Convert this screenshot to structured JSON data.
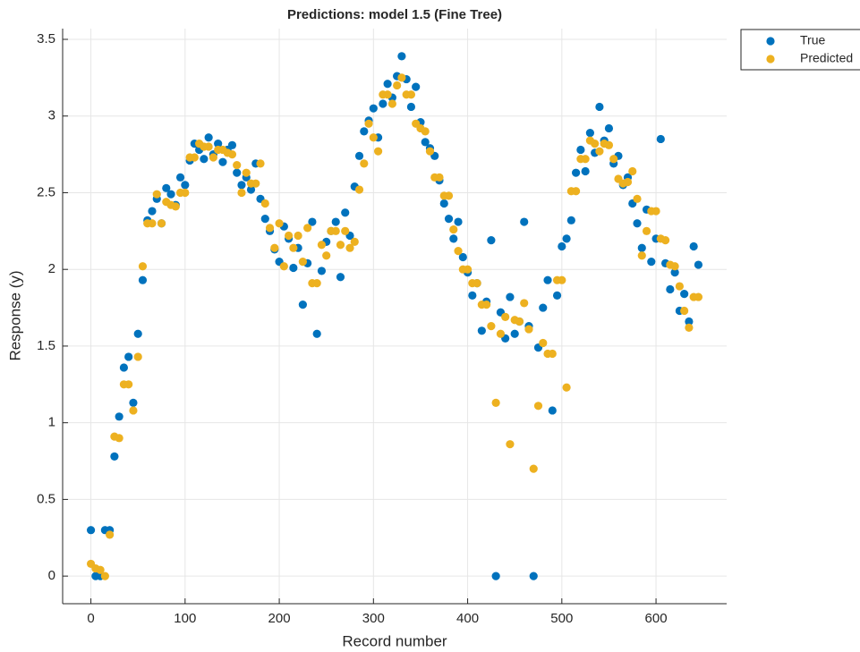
{
  "chart_data": {
    "type": "scatter",
    "title": "Predictions: model 1.5 (Fine Tree)",
    "x_label": "Record number",
    "y_label": "Response (y)",
    "xlim": [
      -30,
      675
    ],
    "xticks": [
      0,
      100,
      200,
      300,
      400,
      500,
      600
    ],
    "ylim": [
      -0.18,
      3.57
    ],
    "yticks": [
      0,
      0.5,
      1,
      1.5,
      2,
      2.5,
      3,
      3.5
    ],
    "grid": true,
    "legend": "outside-top-right",
    "x": [
      0,
      5,
      10,
      15,
      20,
      25,
      30,
      35,
      40,
      45,
      50,
      55,
      60,
      65,
      70,
      75,
      80,
      85,
      90,
      95,
      100,
      105,
      110,
      115,
      120,
      125,
      130,
      135,
      140,
      145,
      150,
      155,
      160,
      165,
      170,
      175,
      180,
      185,
      190,
      195,
      200,
      205,
      210,
      215,
      220,
      225,
      230,
      235,
      240,
      245,
      250,
      255,
      260,
      265,
      270,
      275,
      280,
      285,
      290,
      295,
      300,
      305,
      310,
      315,
      320,
      325,
      330,
      335,
      340,
      345,
      350,
      355,
      360,
      365,
      370,
      375,
      380,
      385,
      390,
      395,
      400,
      405,
      410,
      415,
      420,
      425,
      430,
      435,
      440,
      445,
      450,
      455,
      460,
      465,
      470,
      475,
      480,
      485,
      490,
      495,
      500,
      505,
      510,
      515,
      520,
      525,
      530,
      535,
      540,
      545,
      550,
      555,
      560,
      565,
      570,
      575,
      580,
      585,
      590,
      595,
      600,
      605,
      610,
      615,
      620,
      625,
      630,
      635,
      640,
      645
    ],
    "series": [
      {
        "name": "True",
        "color": "#0072bd",
        "values": [
          0.3,
          0,
          0,
          0.3,
          0.3,
          0.78,
          1.04,
          1.36,
          1.43,
          1.13,
          1.58,
          1.93,
          2.32,
          2.38,
          2.46,
          2.3,
          2.53,
          2.49,
          2.42,
          2.6,
          2.55,
          2.71,
          2.82,
          2.78,
          2.72,
          2.86,
          2.75,
          2.82,
          2.7,
          2.78,
          2.81,
          2.63,
          2.55,
          2.6,
          2.52,
          2.69,
          2.46,
          2.33,
          2.25,
          2.13,
          2.05,
          2.28,
          2.2,
          2.01,
          2.14,
          1.77,
          2.04,
          2.31,
          1.58,
          1.99,
          2.18,
          2.25,
          2.31,
          1.95,
          2.37,
          2.22,
          2.54,
          2.74,
          2.9,
          2.97,
          3.05,
          2.86,
          3.08,
          3.21,
          3.12,
          3.26,
          3.39,
          3.24,
          3.06,
          3.19,
          2.96,
          2.83,
          2.79,
          2.74,
          2.58,
          2.43,
          2.33,
          2.2,
          2.31,
          2.08,
          1.98,
          1.83,
          1.91,
          1.6,
          1.79,
          2.19,
          0,
          1.72,
          1.55,
          1.82,
          1.58,
          1.66,
          2.31,
          1.63,
          0,
          1.49,
          1.75,
          1.93,
          1.08,
          1.83,
          2.15,
          2.2,
          2.32,
          2.63,
          2.78,
          2.64,
          2.89,
          2.76,
          3.06,
          2.84,
          2.92,
          2.69,
          2.74,
          2.55,
          2.6,
          2.43,
          2.3,
          2.14,
          2.39,
          2.05,
          2.2,
          2.85,
          2.04,
          1.87,
          1.98,
          1.73,
          1.84,
          1.66,
          2.15,
          2.03
        ]
      },
      {
        "name": "Predicted",
        "color": "#edb120",
        "values": [
          0.08,
          0.05,
          0.04,
          0,
          0.27,
          0.91,
          0.9,
          1.25,
          1.25,
          1.08,
          1.43,
          2.02,
          2.3,
          2.3,
          2.49,
          2.3,
          2.44,
          2.42,
          2.41,
          2.5,
          2.5,
          2.73,
          2.73,
          2.82,
          2.8,
          2.8,
          2.73,
          2.78,
          2.78,
          2.76,
          2.75,
          2.68,
          2.5,
          2.63,
          2.56,
          2.56,
          2.69,
          2.43,
          2.27,
          2.14,
          2.3,
          2.02,
          2.22,
          2.14,
          2.22,
          2.05,
          2.27,
          1.91,
          1.91,
          2.16,
          2.09,
          2.25,
          2.25,
          2.16,
          2.25,
          2.14,
          2.18,
          2.52,
          2.69,
          2.95,
          2.86,
          2.77,
          3.14,
          3.14,
          3.08,
          3.2,
          3.25,
          3.14,
          3.14,
          2.95,
          2.92,
          2.9,
          2.77,
          2.6,
          2.6,
          2.48,
          2.48,
          2.26,
          2.12,
          2,
          2,
          1.91,
          1.91,
          1.77,
          1.77,
          1.63,
          1.13,
          1.58,
          1.69,
          0.86,
          1.67,
          1.66,
          1.78,
          1.61,
          0.7,
          1.11,
          1.52,
          1.45,
          1.45,
          1.93,
          1.93,
          1.23,
          2.51,
          2.51,
          2.72,
          2.72,
          2.84,
          2.82,
          2.77,
          2.82,
          2.81,
          2.72,
          2.59,
          2.56,
          2.57,
          2.64,
          2.46,
          2.09,
          2.25,
          2.38,
          2.38,
          2.2,
          2.19,
          2.03,
          2.02,
          1.89,
          1.73,
          1.62,
          1.82,
          1.82
        ]
      }
    ]
  }
}
